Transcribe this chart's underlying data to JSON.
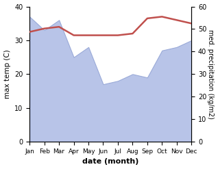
{
  "months": [
    "Jan",
    "Feb",
    "Mar",
    "Apr",
    "May",
    "Jun",
    "Jul",
    "Aug",
    "Sep",
    "Oct",
    "Nov",
    "Dec"
  ],
  "month_indices": [
    1,
    2,
    3,
    4,
    5,
    6,
    7,
    8,
    9,
    10,
    11,
    12
  ],
  "precipitation_left_scale": [
    37,
    33,
    36,
    25,
    28,
    17,
    18,
    20,
    19,
    27,
    28,
    30
  ],
  "temperature": [
    32.5,
    33.5,
    34.0,
    31.5,
    31.5,
    31.5,
    31.5,
    32.0,
    36.5,
    37.0,
    36.0,
    35.0
  ],
  "temp_color": "#c0504d",
  "precip_color": "#b8c4e8",
  "precip_edge_color": "#9aaad8",
  "xlabel": "date (month)",
  "ylabel_left": "max temp (C)",
  "ylabel_right": "med. precipitation (kg/m2)",
  "ylim_left": [
    0,
    40
  ],
  "ylim_right": [
    0,
    60
  ],
  "yticks_left": [
    0,
    10,
    20,
    30,
    40
  ],
  "yticks_right": [
    0,
    10,
    20,
    30,
    40,
    50,
    60
  ],
  "temp_linewidth": 1.8
}
